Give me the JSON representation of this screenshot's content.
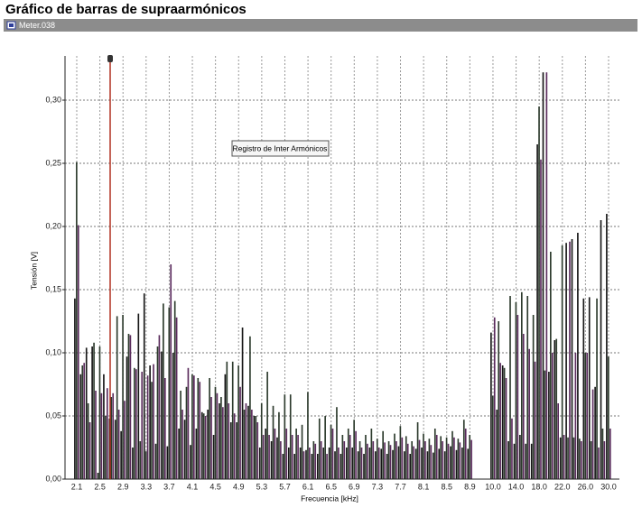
{
  "header": {
    "title": "Gráfico de barras de supraarmónicos",
    "tab": "Meter.038"
  },
  "chart_data": {
    "type": "bar",
    "annotation": "Registro de Inter Armónicos",
    "x_label": "Frecuencia [kHz]",
    "y_label": "Tensión [V]",
    "categories": [
      "2.1",
      null,
      null,
      null,
      "2.5",
      null,
      null,
      null,
      "2.9",
      null,
      null,
      null,
      "3.3",
      null,
      null,
      null,
      "3.7",
      null,
      null,
      null,
      "4.1",
      null,
      null,
      null,
      "4.5",
      null,
      null,
      null,
      "4.9",
      null,
      null,
      null,
      "5.3",
      null,
      null,
      null,
      "5.7",
      null,
      null,
      null,
      "6.1",
      null,
      null,
      null,
      "6.5",
      null,
      null,
      null,
      "6.9",
      null,
      null,
      null,
      "7.3",
      null,
      null,
      null,
      "7.7",
      null,
      null,
      null,
      "8.1",
      null,
      null,
      null,
      "8.5",
      null,
      null,
      null,
      "8.9",
      null,
      null,
      null,
      "10.0",
      null,
      null,
      null,
      "14.0",
      null,
      null,
      null,
      "18.0",
      null,
      null,
      null,
      "22.0",
      null,
      null,
      null,
      "26.0",
      null,
      null,
      null,
      "30.0"
    ],
    "series": [
      {
        "color": "#161616",
        "values": [
          0.143,
          0.083,
          0.104,
          0.105,
          0.005,
          0.083,
          0.048,
          0.047,
          0.038,
          0.097,
          0.025,
          0.131,
          0.147,
          0.09,
          0.028,
          0.101,
          0.026,
          0.1,
          0.04,
          0.047,
          0.027,
          0.04,
          0.053,
          0.055,
          0.035,
          0.06,
          0.083,
          0.045,
          0.045,
          0.12,
          0.058,
          0.05,
          0.025,
          0.04,
          0.03,
          0.033,
          0.02,
          0.025,
          0.02,
          0.025,
          0.023,
          0.02,
          0.02,
          0.025,
          0.025,
          0.022,
          0.02,
          0.025,
          0.025,
          0.022,
          0.02,
          0.025,
          0.022,
          0.024,
          0.02,
          0.023,
          0.026,
          0.022,
          0.02,
          0.024,
          0.025,
          0.022,
          0.021,
          0.024,
          0.022,
          0.026,
          0.023,
          0.025,
          0.024,
          null,
          null,
          null,
          0.116,
          0.055,
          0.09,
          0.03,
          0.028,
          0.035,
          0.028,
          0.028,
          0.265,
          0.322,
          0.085,
          0.11,
          0.033,
          0.187,
          0.19,
          0.195,
          0.143,
          0.144,
          0.073,
          0.205,
          0.21
        ]
      },
      {
        "color": "#2c3a2c",
        "values": [
          0.251,
          0.09,
          0.06,
          0.108,
          0.105,
          0.05,
          0.065,
          0.129,
          0.13,
          0.115,
          0.088,
          0.03,
          0.022,
          0.077,
          0.105,
          0.139,
          0.136,
          0.141,
          0.07,
          0.073,
          0.083,
          0.08,
          0.052,
          0.08,
          0.073,
          0.065,
          0.093,
          0.093,
          0.09,
          0.055,
          0.113,
          0.05,
          0.06,
          0.085,
          0.058,
          0.053,
          0.067,
          0.067,
          0.04,
          0.043,
          0.069,
          0.03,
          0.048,
          0.05,
          0.043,
          0.057,
          0.035,
          0.04,
          0.047,
          0.03,
          0.035,
          0.04,
          0.032,
          0.038,
          0.03,
          0.036,
          0.042,
          0.034,
          0.03,
          0.045,
          0.036,
          0.032,
          0.04,
          0.034,
          0.033,
          0.038,
          0.032,
          0.047,
          0.035,
          null,
          null,
          null,
          0.066,
          0.125,
          0.088,
          0.145,
          0.14,
          0.148,
          0.145,
          0.13,
          0.295,
          0.086,
          0.18,
          0.111,
          0.185,
          0.033,
          0.033,
          0.032,
          0.1,
          0.03,
          0.143,
          0.04,
          0.097
        ]
      },
      {
        "color": "#5a2b5c",
        "values": [
          0.201,
          0.092,
          0.045,
          0.07,
          0.068,
          0.072,
          0.068,
          0.055,
          0.062,
          0.114,
          0.087,
          0.085,
          0.082,
          0.091,
          0.114,
          0.08,
          0.17,
          0.128,
          0.055,
          0.088,
          0.082,
          0.077,
          0.05,
          0.065,
          0.068,
          0.057,
          0.06,
          0.052,
          0.073,
          0.06,
          0.055,
          0.045,
          0.035,
          0.035,
          0.04,
          0.03,
          0.04,
          0.035,
          0.035,
          0.022,
          0.025,
          0.028,
          0.03,
          0.02,
          0.04,
          0.025,
          0.03,
          0.035,
          0.038,
          0.025,
          0.028,
          0.03,
          0.025,
          0.029,
          0.027,
          0.03,
          0.033,
          0.028,
          0.026,
          0.031,
          0.03,
          0.027,
          0.035,
          0.03,
          0.028,
          0.033,
          0.029,
          0.04,
          0.031,
          null,
          null,
          null,
          0.128,
          0.092,
          0.08,
          0.048,
          0.13,
          0.115,
          0.103,
          0.093,
          0.253,
          0.322,
          0.1,
          0.06,
          0.035,
          0.188,
          0.1,
          0.03,
          0.1,
          0.071,
          0.025,
          0.03,
          0.04
        ]
      }
    ],
    "ylim": [
      0,
      0.335
    ],
    "yticks": [
      {
        "value": 0,
        "label": "0,00"
      },
      {
        "value": 0.05,
        "label": "0,05"
      },
      {
        "value": 0.1,
        "label": "0,10"
      },
      {
        "value": 0.15,
        "label": "0,15"
      },
      {
        "value": 0.2,
        "label": "0,20"
      },
      {
        "value": 0.25,
        "label": "0,25"
      },
      {
        "value": 0.3,
        "label": "0,30"
      }
    ],
    "grid": true
  }
}
